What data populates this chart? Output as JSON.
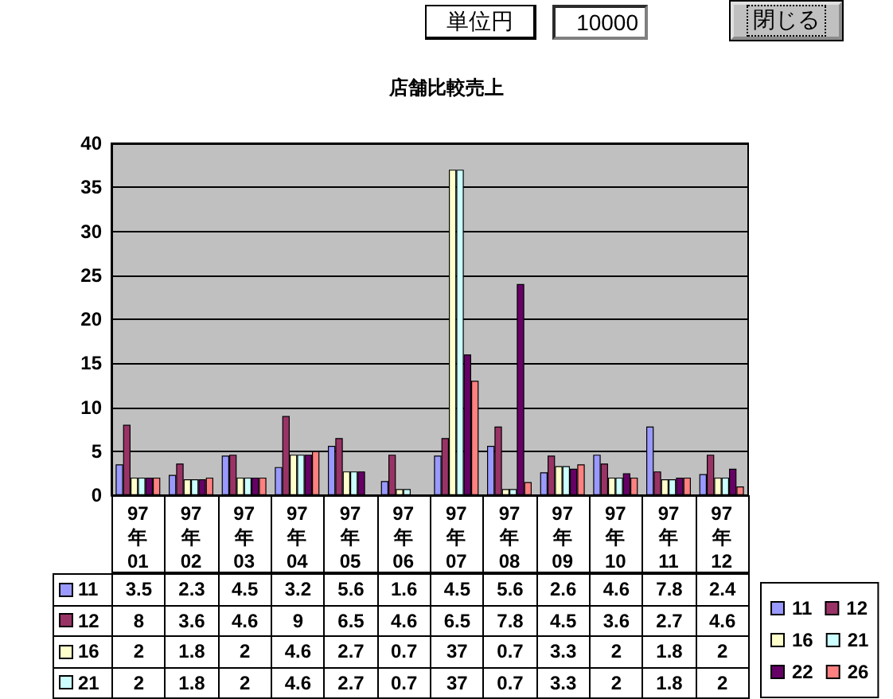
{
  "chart_data": {
    "type": "bar",
    "title": "店舗比較売上",
    "annotations": [
      "単位円",
      "10000",
      "閉じる"
    ],
    "categories": [
      "97年01",
      "97年02",
      "97年03",
      "97年04",
      "97年05",
      "97年06",
      "97年07",
      "97年08",
      "97年09",
      "97年10",
      "97年11",
      "97年12"
    ],
    "series": [
      {
        "name": "11",
        "color": "#9999ff",
        "values": [
          3.5,
          2.3,
          4.5,
          3.2,
          5.6,
          1.6,
          4.5,
          5.6,
          2.6,
          4.6,
          7.8,
          2.4
        ],
        "value_labels": [
          "3.5",
          "2.3",
          "4.5",
          "3.2",
          "5.6",
          "1.6",
          "4.5",
          "5.6",
          "2.6",
          "4.6",
          "7.8",
          "2.4"
        ]
      },
      {
        "name": "12",
        "color": "#993366",
        "values": [
          8,
          3.6,
          4.6,
          9,
          6.5,
          4.6,
          6.5,
          7.8,
          4.5,
          3.6,
          2.7,
          4.6
        ],
        "value_labels": [
          "8",
          "3.6",
          "4.6",
          "9",
          "6.5",
          "4.6",
          "6.5",
          "7.8",
          "4.5",
          "3.6",
          "2.7",
          "4.6"
        ]
      },
      {
        "name": "16",
        "color": "#ffffcc",
        "values": [
          2,
          1.8,
          2,
          4.6,
          2.7,
          0.7,
          37,
          0.7,
          3.3,
          2,
          1.8,
          2
        ],
        "value_labels": [
          "2",
          "1.8",
          "2",
          "4.6",
          "2.7",
          "0.7",
          "37",
          "0.7",
          "3.3",
          "2",
          "1.8",
          "2"
        ]
      },
      {
        "name": "21",
        "color": "#ccffff",
        "values": [
          2,
          1.8,
          2,
          4.6,
          2.7,
          0.7,
          37,
          0.7,
          3.3,
          2,
          1.8,
          2
        ],
        "value_labels": [
          "2",
          "1.8",
          "2",
          "4.6",
          "2.7",
          "0.7",
          "37",
          "0.7",
          "3.3",
          "2",
          "1.8",
          "2"
        ]
      },
      {
        "name": "22",
        "color": "#660066",
        "values": [
          2,
          1.8,
          2,
          4.6,
          2.7,
          null,
          16,
          24,
          3,
          2.5,
          2,
          3
        ]
      },
      {
        "name": "26",
        "color": "#ff8080",
        "values": [
          2,
          2,
          2,
          5,
          null,
          null,
          13,
          1.5,
          3.5,
          2,
          2,
          1
        ]
      }
    ],
    "ylim": [
      0,
      40
    ],
    "yticks": [
      0,
      5,
      10,
      15,
      20,
      25,
      30,
      35,
      40
    ],
    "grid": "y",
    "legend": "bottom right"
  }
}
